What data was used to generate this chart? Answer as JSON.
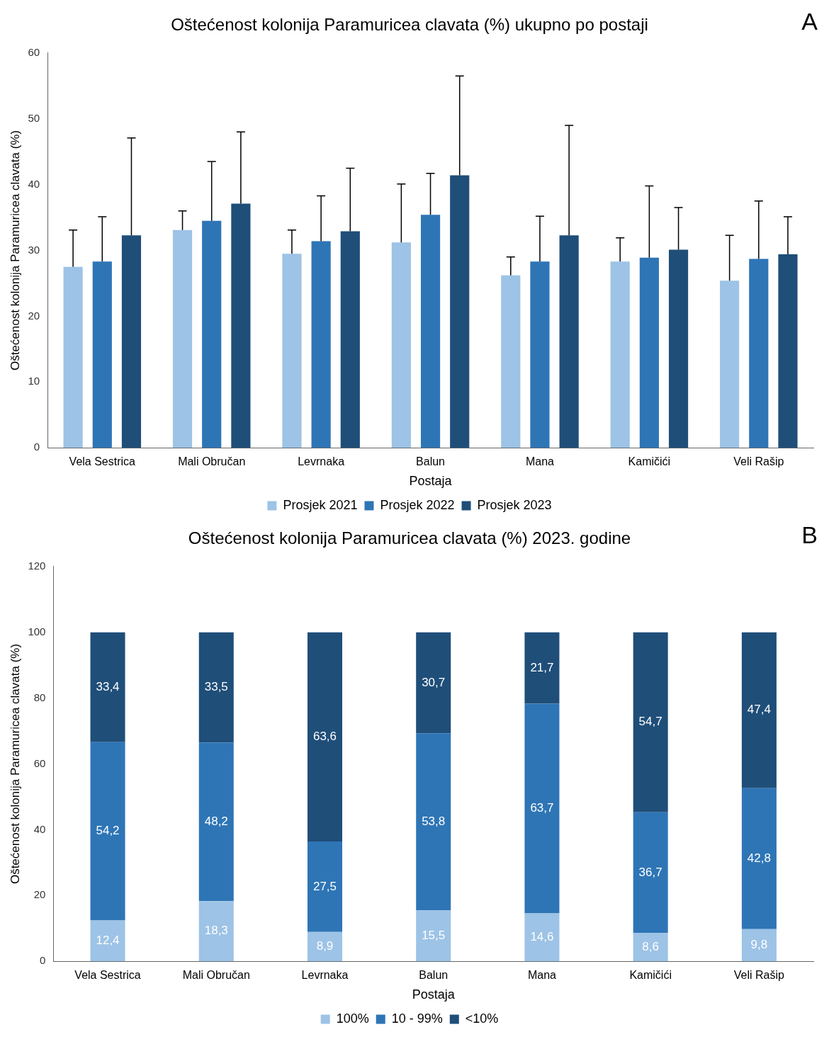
{
  "chart_data": [
    {
      "type": "bar",
      "title": "Oštećenost kolonija Paramuricea clavata (%) ukupno po postaji",
      "xlabel": "Postaja",
      "ylabel": "Oštećenost kolonija Paramuricea clavata (%)",
      "categories": [
        "Vela Sestrica",
        "Mali Obručan",
        "Levrnaka",
        "Balun",
        "Mana",
        "Kamičići",
        "Veli Rašip"
      ],
      "ylim": [
        0,
        60
      ],
      "yticks": [
        0,
        10,
        20,
        30,
        40,
        50,
        60
      ],
      "legend": "bottom",
      "annotations": [
        "A"
      ],
      "series": [
        {
          "name": "Prosjek 2021",
          "color": "#9dc3e6",
          "values": [
            27.5,
            33.1,
            29.5,
            31.2,
            26.2,
            28.3,
            25.4
          ],
          "errors": [
            [
              27.5,
              33.1
            ],
            [
              33.1,
              36
            ],
            [
              29.5,
              33.1
            ],
            [
              31.2,
              40.1
            ],
            [
              26.2,
              29
            ],
            [
              28.3,
              31.9
            ],
            [
              25.4,
              32.3
            ]
          ]
        },
        {
          "name": "Prosjek 2022",
          "color": "#2e75b6",
          "values": [
            28.3,
            34.5,
            31.4,
            35.4,
            28.3,
            28.9,
            28.7
          ],
          "errors": [
            [
              28.3,
              35.1
            ],
            [
              34.5,
              43.5
            ],
            [
              31.4,
              38.3
            ],
            [
              35.4,
              41.7
            ],
            [
              28.3,
              35.2
            ],
            [
              28.9,
              39.8
            ],
            [
              28.7,
              37.5
            ]
          ]
        },
        {
          "name": "Prosjek 2023",
          "color": "#1f4e79",
          "values": [
            32.3,
            37.1,
            32.9,
            41.4,
            32.3,
            30.1,
            29.4
          ],
          "errors": [
            [
              32.3,
              47.1
            ],
            [
              37.1,
              48
            ],
            [
              32.9,
              42.5
            ],
            [
              41.4,
              56.5
            ],
            [
              32.3,
              49
            ],
            [
              30.1,
              36.5
            ],
            [
              29.4,
              35.1
            ]
          ]
        }
      ]
    },
    {
      "type": "bar",
      "title": "Oštećenost kolonija Paramuricea clavata (%) 2023. godine",
      "xlabel": "Postaja",
      "ylabel": "Oštećenost kolonija Paramuricea clavata (%)",
      "categories": [
        "Vela Sestrica",
        "Mali Obručan",
        "Levrnaka",
        "Balun",
        "Mana",
        "Kamičići",
        "Veli Rašip"
      ],
      "ylim": [
        0,
        120
      ],
      "yticks": [
        0,
        20,
        40,
        60,
        80,
        100,
        120
      ],
      "legend": "bottom",
      "stacked": true,
      "annotations": [
        "B"
      ],
      "series": [
        {
          "name": "100%",
          "color": "#9dc3e6",
          "values": [
            12.4,
            18.3,
            8.9,
            15.5,
            14.6,
            8.6,
            9.8
          ],
          "value_labels": [
            "12,4",
            "18,3",
            "8,9",
            "15,5",
            "14,6",
            "8,6",
            "9,8"
          ]
        },
        {
          "name": "10 - 99%",
          "color": "#2e75b6",
          "values": [
            54.2,
            48.2,
            27.5,
            53.8,
            63.7,
            36.7,
            42.8
          ],
          "value_labels": [
            "54,2",
            "48,2",
            "27,5",
            "53,8",
            "63,7",
            "36,7",
            "42,8"
          ]
        },
        {
          "name": "<10%",
          "color": "#1f4e79",
          "values": [
            33.4,
            33.5,
            63.6,
            30.7,
            21.7,
            54.7,
            47.4
          ],
          "value_labels": [
            "33,4",
            "33,5",
            "63,6",
            "30,7",
            "21,7",
            "54,7",
            "47,4"
          ]
        }
      ]
    }
  ]
}
